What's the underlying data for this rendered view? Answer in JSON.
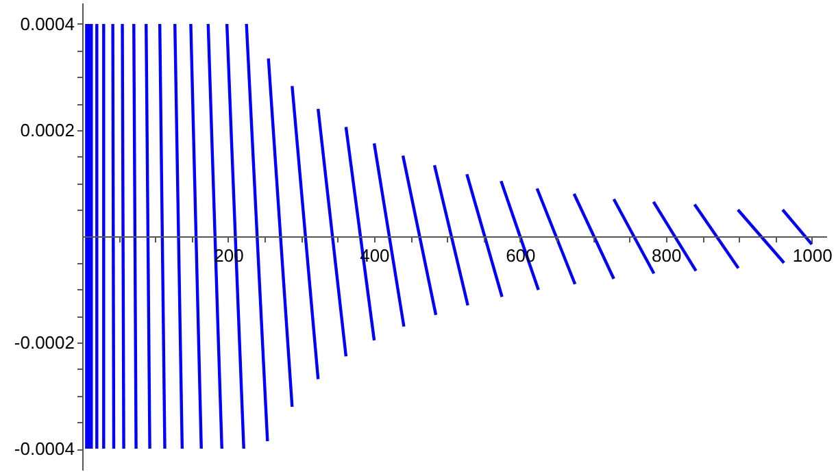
{
  "chart_data": {
    "type": "line",
    "xlim": [
      0,
      1020
    ],
    "ylim": [
      -0.00044,
      0.00044
    ],
    "xticks": [
      {
        "value": 50,
        "label": null
      },
      {
        "value": 100,
        "label": null
      },
      {
        "value": 150,
        "label": null
      },
      200,
      {
        "value": 250,
        "label": null
      },
      {
        "value": 300,
        "label": null
      },
      {
        "value": 350,
        "label": null
      },
      400,
      {
        "value": 450,
        "label": null
      },
      {
        "value": 500,
        "label": null
      },
      {
        "value": 550,
        "label": null
      },
      600,
      {
        "value": 650,
        "label": null
      },
      {
        "value": 700,
        "label": null
      },
      {
        "value": 750,
        "label": null
      },
      800,
      {
        "value": 850,
        "label": null
      },
      {
        "value": 900,
        "label": null
      },
      {
        "value": 950,
        "label": null
      },
      1000
    ],
    "yticks": [
      -0.0004,
      {
        "value": -0.00035,
        "label": null
      },
      {
        "value": -0.0003,
        "label": null
      },
      {
        "value": -0.00025,
        "label": null
      },
      -0.0002,
      {
        "value": -0.00015,
        "label": null
      },
      {
        "value": -0.0001,
        "label": null
      },
      {
        "value": -5e-05,
        "label": null
      },
      {
        "value": 5e-05,
        "label": null
      },
      {
        "value": 0.0001,
        "label": null
      },
      {
        "value": 0.00015,
        "label": null
      },
      0.0002,
      {
        "value": 0.00025,
        "label": null
      },
      {
        "value": 0.0003,
        "label": null
      },
      {
        "value": 0.00035,
        "label": null
      },
      0.0004
    ],
    "grid": false,
    "marker": "none",
    "line_style": "solid",
    "series": [
      {
        "color": "#0000ff",
        "x": [
          6,
          6
        ],
        "values": [
          0.0004,
          -0.0004
        ]
      },
      {
        "color": "#0000ff",
        "x": [
          9,
          9
        ],
        "values": [
          0.0004,
          -0.0004
        ]
      },
      {
        "color": "#0000ff",
        "x": [
          12.5,
          12.5
        ],
        "values": [
          0.0004,
          -0.0004
        ]
      },
      {
        "color": "#0000ff",
        "x": [
          20,
          20
        ],
        "values": [
          0.0004,
          -0.0004
        ]
      },
      {
        "color": "#0000ff",
        "x": [
          29.4,
          29.4
        ],
        "values": [
          0.0004,
          -0.0004
        ]
      },
      {
        "color": "#0000ff",
        "x": [
          41.9,
          43.2
        ],
        "values": [
          0.0004,
          -0.0004
        ]
      },
      {
        "color": "#0000ff",
        "x": [
          55,
          56.9
        ],
        "values": [
          0.0004,
          -0.0004
        ]
      },
      {
        "color": "#0000ff",
        "x": [
          70.7,
          73.8
        ],
        "values": [
          0.0004,
          -0.0004
        ]
      },
      {
        "color": "#0000ff",
        "x": [
          87.6,
          92.6
        ],
        "values": [
          0.0004,
          -0.0004
        ]
      },
      {
        "color": "#0000ff",
        "x": [
          106.3,
          113.2
        ],
        "values": [
          0.0004,
          -0.0004
        ]
      },
      {
        "color": "#0000ff",
        "x": [
          127,
          137
        ],
        "values": [
          0.0004,
          -0.0004
        ]
      },
      {
        "color": "#0000ff",
        "x": [
          148.8,
          163.2
        ],
        "values": [
          0.0004,
          -0.0004
        ]
      },
      {
        "color": "#0000ff",
        "x": [
          172.6,
          191.4
        ],
        "values": [
          0.0004,
          -0.0004
        ]
      },
      {
        "color": "#0000ff",
        "x": [
          198.3,
          221.4
        ],
        "values": [
          0.0004,
          -0.0004
        ]
      },
      {
        "color": "#0000ff",
        "x": [
          225.1,
          253.9
        ],
        "values": [
          0.0004,
          -0.000386
        ]
      },
      {
        "color": "#0000ff",
        "x": [
          255.2,
          287.7
        ],
        "values": [
          0.000335,
          -0.000321
        ]
      },
      {
        "color": "#0000ff",
        "x": [
          287.7,
          323.3
        ],
        "values": [
          0.000283,
          -0.000269
        ]
      },
      {
        "color": "#0000ff",
        "x": [
          323.3,
          361.5
        ],
        "values": [
          0.00024,
          -0.000226
        ]
      },
      {
        "color": "#0000ff",
        "x": [
          361.5,
          400.2
        ],
        "values": [
          0.000206,
          -0.000196
        ]
      },
      {
        "color": "#0000ff",
        "x": [
          400.2,
          440.9
        ],
        "values": [
          0.000175,
          -0.00017
        ]
      },
      {
        "color": "#0000ff",
        "x": [
          439.6,
          484.7
        ],
        "values": [
          0.000152,
          -0.000148
        ]
      },
      {
        "color": "#0000ff",
        "x": [
          482.8,
          528.5
        ],
        "values": [
          0.000134,
          -0.00013
        ]
      },
      {
        "color": "#0000ff",
        "x": [
          527.2,
          575.4
        ],
        "values": [
          0.000117,
          -0.000114
        ]
      },
      {
        "color": "#0000ff",
        "x": [
          574.1,
          625.3
        ],
        "values": [
          0.000104,
          -0.000101
        ]
      },
      {
        "color": "#0000ff",
        "x": [
          623.4,
          675.4
        ],
        "values": [
          9e-05,
          -9e-05
        ]
      },
      {
        "color": "#0000ff",
        "x": [
          674.1,
          728.6
        ],
        "values": [
          8e-05,
          -8e-05
        ]
      },
      {
        "color": "#0000ff",
        "x": [
          728.6,
          783.6
        ],
        "values": [
          7e-05,
          -7e-05
        ]
      },
      {
        "color": "#0000ff",
        "x": [
          783,
          841.2
        ],
        "values": [
          6.5e-05,
          -6.5e-05
        ]
      },
      {
        "color": "#0000ff",
        "x": [
          839.3,
          899.3
        ],
        "values": [
          6e-05,
          -6e-05
        ]
      },
      {
        "color": "#0000ff",
        "x": [
          898.7,
          961.9
        ],
        "values": [
          5e-05,
          -5e-05
        ]
      },
      {
        "color": "#0000ff",
        "x": [
          960,
          1000
        ],
        "values": [
          5e-05,
          -1.5e-05
        ]
      }
    ]
  }
}
